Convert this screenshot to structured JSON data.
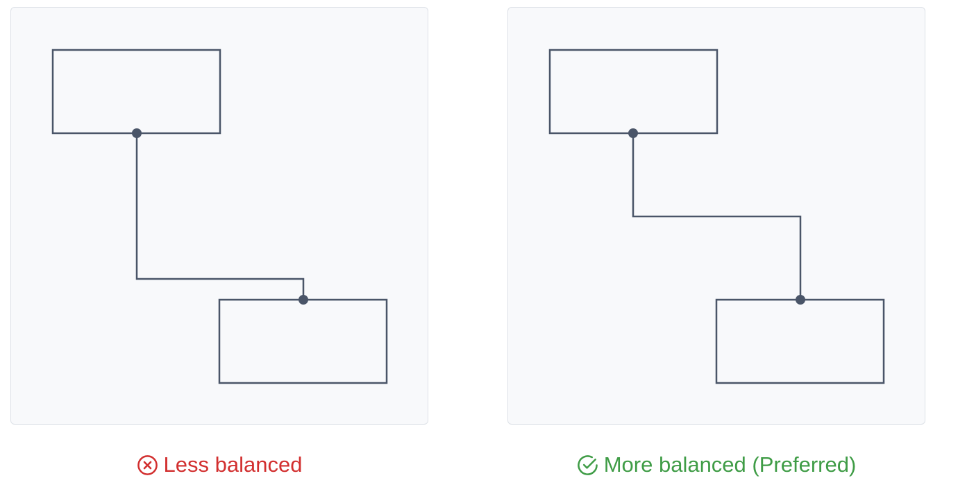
{
  "colors": {
    "panel_background": "#f8f9fb",
    "panel_border": "#dde1e7",
    "stroke": "#4a5568",
    "bad": "#d22f2f",
    "good": "#3f9c46"
  },
  "examples": [
    {
      "verdict": "bad",
      "icon": "x-circle-icon",
      "caption": "Less balanced"
    },
    {
      "verdict": "good",
      "icon": "check-circle-icon",
      "caption": "More balanced (Preferred)"
    }
  ]
}
